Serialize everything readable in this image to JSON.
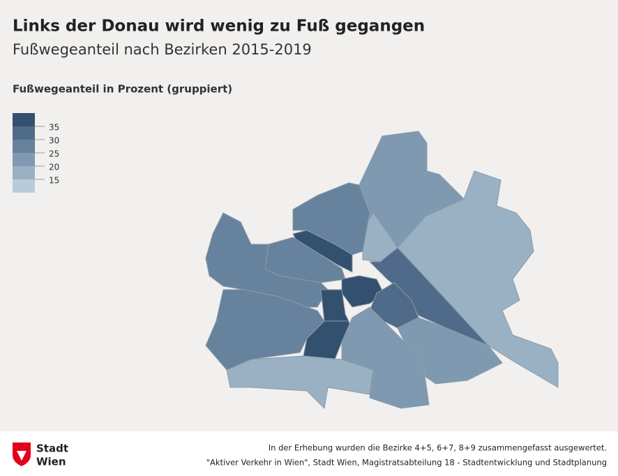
{
  "header": {
    "title": "Links der Donau wird wenig zu Fuß gegangen",
    "subtitle": "Fußwegeanteil nach Bezirken 2015-2019"
  },
  "legend": {
    "title": "Fußwegeanteil in Prozent (gruppiert)",
    "ticks": [
      35,
      30,
      25,
      20,
      15
    ],
    "colors": [
      "#34506f",
      "#4f6b89",
      "#66829c",
      "#7f9ab0",
      "#9ab1c4",
      "#b9cbd9"
    ]
  },
  "map": {
    "regions": [
      {
        "value": 22
      },
      {
        "value": 18
      },
      {
        "value": 18
      },
      {
        "value": 32
      },
      {
        "value": 27
      },
      {
        "value": 37
      },
      {
        "value": 27
      },
      {
        "value": 27
      },
      {
        "value": 27
      },
      {
        "value": 37
      },
      {
        "value": 37
      },
      {
        "value": 37
      },
      {
        "value": 32
      },
      {
        "value": 22
      },
      {
        "value": 22
      },
      {
        "value": 18
      }
    ]
  },
  "footer": {
    "logo": [
      "Stadt",
      "Wien"
    ],
    "notes": [
      "In der Erhebung wurden die Bezirke 4+5, 6+7, 8+9 zusammengefasst ausgewertet.",
      "\"Aktiver Verkehr in Wien\", Stadt Wien, Magistratsabteilung 18 - Stadtentwicklung und Stadtplanung"
    ]
  }
}
